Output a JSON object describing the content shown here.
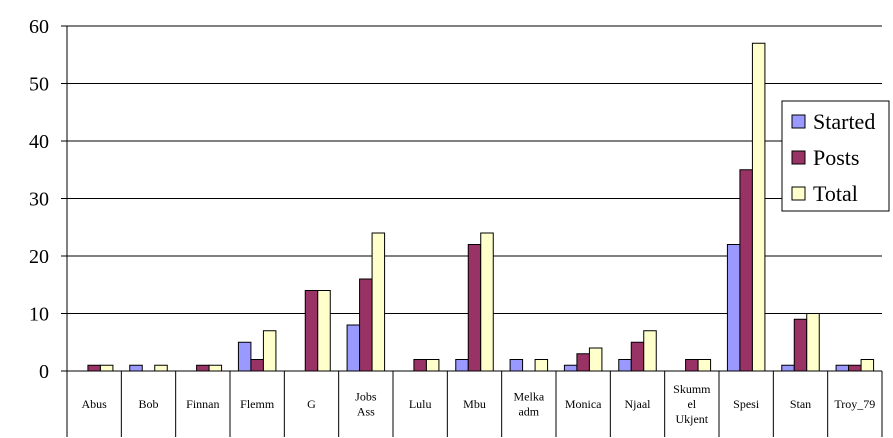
{
  "chart_data": {
    "type": "bar",
    "categories": [
      [
        "Abus"
      ],
      [
        "Bob"
      ],
      [
        "Finnan"
      ],
      [
        "Flemm"
      ],
      [
        "G"
      ],
      [
        "Jobs",
        "Ass"
      ],
      [
        "Lulu"
      ],
      [
        "Mbu"
      ],
      [
        "Melka",
        "adm"
      ],
      [
        "Monica"
      ],
      [
        "Njaal"
      ],
      [
        "Skumm",
        "el",
        "Ukjent"
      ],
      [
        "Spesi"
      ],
      [
        "Stan"
      ],
      [
        "Troy_79"
      ]
    ],
    "series": [
      {
        "name": "Started",
        "color": "#9999ff",
        "values": [
          0,
          1,
          0,
          5,
          0,
          8,
          0,
          2,
          2,
          1,
          2,
          0,
          22,
          1,
          1
        ]
      },
      {
        "name": "Posts",
        "color": "#993366",
        "values": [
          1,
          0,
          1,
          2,
          14,
          16,
          2,
          22,
          0,
          3,
          5,
          2,
          35,
          9,
          1
        ]
      },
      {
        "name": "Total",
        "color": "#ffffcc",
        "values": [
          1,
          1,
          1,
          7,
          14,
          24,
          2,
          24,
          2,
          4,
          7,
          2,
          57,
          10,
          2
        ]
      }
    ],
    "ylim": [
      0,
      60
    ],
    "yticks": [
      0,
      10,
      20,
      30,
      40,
      50,
      60
    ],
    "grid": true,
    "legend": "right"
  }
}
